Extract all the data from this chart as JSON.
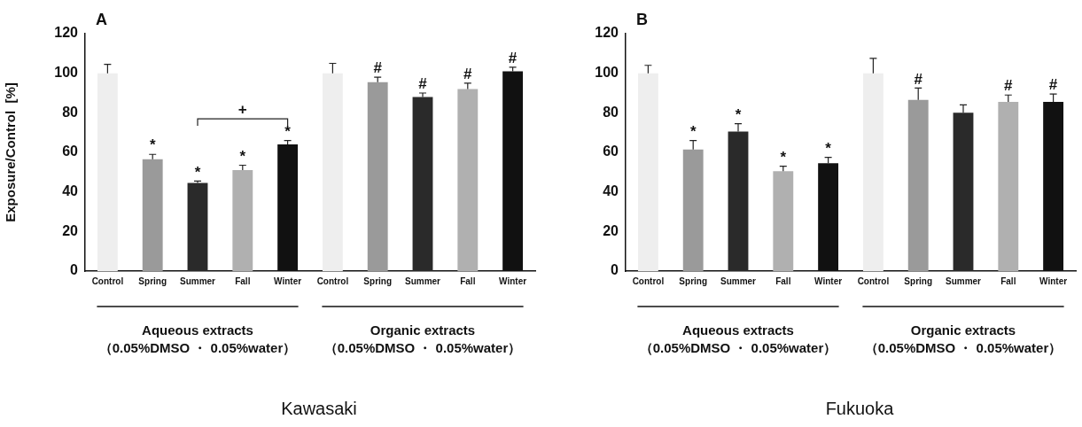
{
  "chart_data": [
    {
      "type": "bar",
      "subtitle": "A",
      "title": "Kawasaki",
      "ylabel": "Exposure/Control  [%]",
      "categories": [
        "Control",
        "Spring",
        "Summer",
        "Fall",
        "Winter",
        "Control",
        "Spring",
        "Summer",
        "Fall",
        "Winter"
      ],
      "values": [
        100,
        56.5,
        44.5,
        51,
        64,
        100,
        95.5,
        88,
        92,
        101
      ],
      "errors": [
        4.5,
        2.5,
        1,
        2.5,
        2,
        5,
        2.5,
        2,
        3,
        2
      ],
      "value_labels": [
        null,
        "*",
        "*",
        "*",
        "*",
        null,
        "#",
        "#",
        "#",
        "#"
      ],
      "colors": [
        "#eeeeee",
        "#9a9a9a",
        "#2a2a2a",
        "#b0b0b0",
        "#111111",
        "#eeeeee",
        "#9a9a9a",
        "#2a2a2a",
        "#b0b0b0",
        "#111111"
      ],
      "ylim": [
        0,
        120
      ],
      "yticks": [
        0,
        20,
        40,
        60,
        80,
        100,
        120
      ],
      "grid": false,
      "legend": false,
      "annotations": [
        "Aqueous extracts\n（0.05%DMSO ・ 0.05%water）",
        "Organic extracts\n（0.05%DMSO ・ 0.05%water）",
        "+"
      ]
    },
    {
      "type": "bar",
      "subtitle": "B",
      "title": "Fukuoka",
      "categories": [
        "Control",
        "Spring",
        "Summer",
        "Fall",
        "Winter",
        "Control",
        "Spring",
        "Summer",
        "Fall",
        "Winter"
      ],
      "values": [
        100,
        61.5,
        70.5,
        50.5,
        54.5,
        100,
        86.5,
        80,
        85.5,
        85.5
      ],
      "errors": [
        4,
        4.5,
        4,
        2.5,
        3,
        7.5,
        6,
        4,
        3.5,
        4
      ],
      "value_labels": [
        null,
        "*",
        "*",
        "*",
        "*",
        null,
        "#",
        null,
        "#",
        "#"
      ],
      "colors": [
        "#eeeeee",
        "#9a9a9a",
        "#2a2a2a",
        "#b0b0b0",
        "#111111",
        "#eeeeee",
        "#9a9a9a",
        "#2a2a2a",
        "#b0b0b0",
        "#111111"
      ],
      "ylim": [
        0,
        120
      ],
      "yticks": [
        0,
        20,
        40,
        60,
        80,
        100,
        120
      ],
      "grid": false,
      "legend": false,
      "annotations": [
        "Aqueous extracts\n（0.05%DMSO ・ 0.05%water）",
        "Organic extracts\n（0.05%DMSO ・ 0.05%water）"
      ]
    }
  ]
}
